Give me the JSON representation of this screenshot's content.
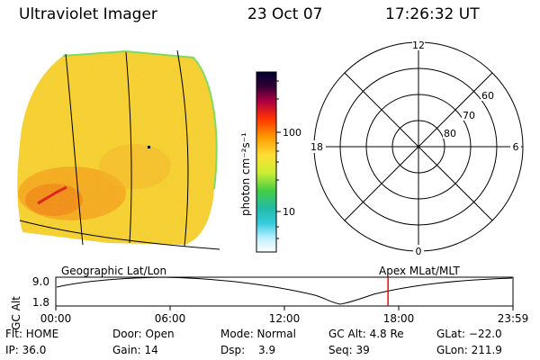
{
  "header": {
    "title": "Ultraviolet Imager",
    "date": "23 Oct 07",
    "time": "17:26:32 UT"
  },
  "colorbar": {
    "unit_label": "photon cm⁻²s⁻¹",
    "ticks": [
      "100",
      "10"
    ]
  },
  "polar_plot": {
    "mlt_labels": [
      "12",
      "6",
      "0",
      "18"
    ],
    "lat_labels": [
      "60",
      "70",
      "80"
    ]
  },
  "timeline": {
    "left_label": "Geographic Lat/Lon",
    "right_label": "Apex MLat/MLT",
    "axis_label": "GC Alt",
    "y_ticks": [
      "9.0",
      "1.8"
    ],
    "x_ticks": [
      "00:00",
      "06:00",
      "12:00",
      "18:00",
      "23:59"
    ],
    "cursor_time_fraction": 0.7267,
    "cursor_color": "#ff0000"
  },
  "status": {
    "row1": {
      "flt": "Flt: HOME",
      "door": "Door: Open",
      "mode": "Mode: Normal",
      "gc_alt": "GC Alt: 4.8 Re",
      "glat": "GLat: −22.0"
    },
    "row2": {
      "ip": "IP: 36.0",
      "gain": "Gain: 14",
      "dsp_label": "Dsp:",
      "dsp_value": "3.9",
      "seq": "Seq: 39",
      "glon": "GLon: 211.9"
    }
  }
}
